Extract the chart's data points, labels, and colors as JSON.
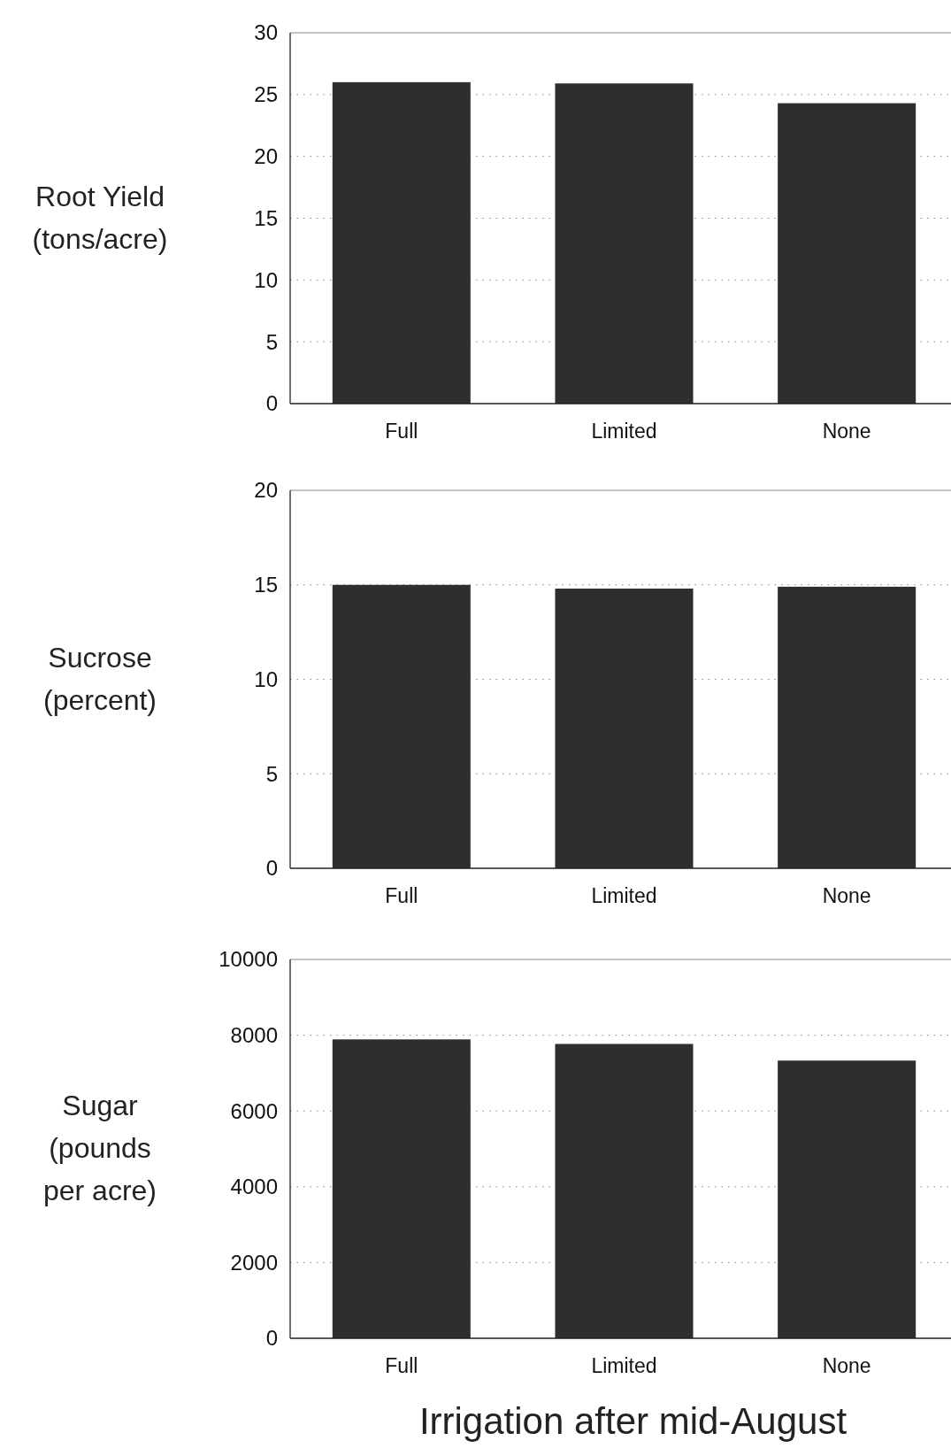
{
  "chart_data": [
    {
      "type": "bar",
      "ylabel": "Root Yield\n(tons/acre)",
      "categories": [
        "Full",
        "Limited",
        "None"
      ],
      "values": [
        26.0,
        25.9,
        24.3
      ],
      "color": "#2e2e2e",
      "ylim": [
        0,
        30
      ],
      "yticks": [
        0,
        5,
        10,
        15,
        20,
        25,
        30
      ],
      "grid": "y"
    },
    {
      "type": "bar",
      "ylabel": "Sucrose\n(percent)",
      "categories": [
        "Full",
        "Limited",
        "None"
      ],
      "values": [
        15.0,
        14.8,
        14.9
      ],
      "color": "#2e2e2e",
      "ylim": [
        0,
        20
      ],
      "yticks": [
        0,
        5,
        10,
        15,
        20
      ],
      "grid": "y"
    },
    {
      "type": "bar",
      "ylabel": "Sugar\n(pounds\nper acre)",
      "xlabel": "Irrigation after mid-August",
      "categories": [
        "Full",
        "Limited",
        "None"
      ],
      "values": [
        7890,
        7770,
        7330
      ],
      "color": "#2e2e2e",
      "ylim": [
        0,
        10000
      ],
      "yticks": [
        0,
        2000,
        4000,
        6000,
        8000,
        10000
      ],
      "grid": "y"
    }
  ]
}
